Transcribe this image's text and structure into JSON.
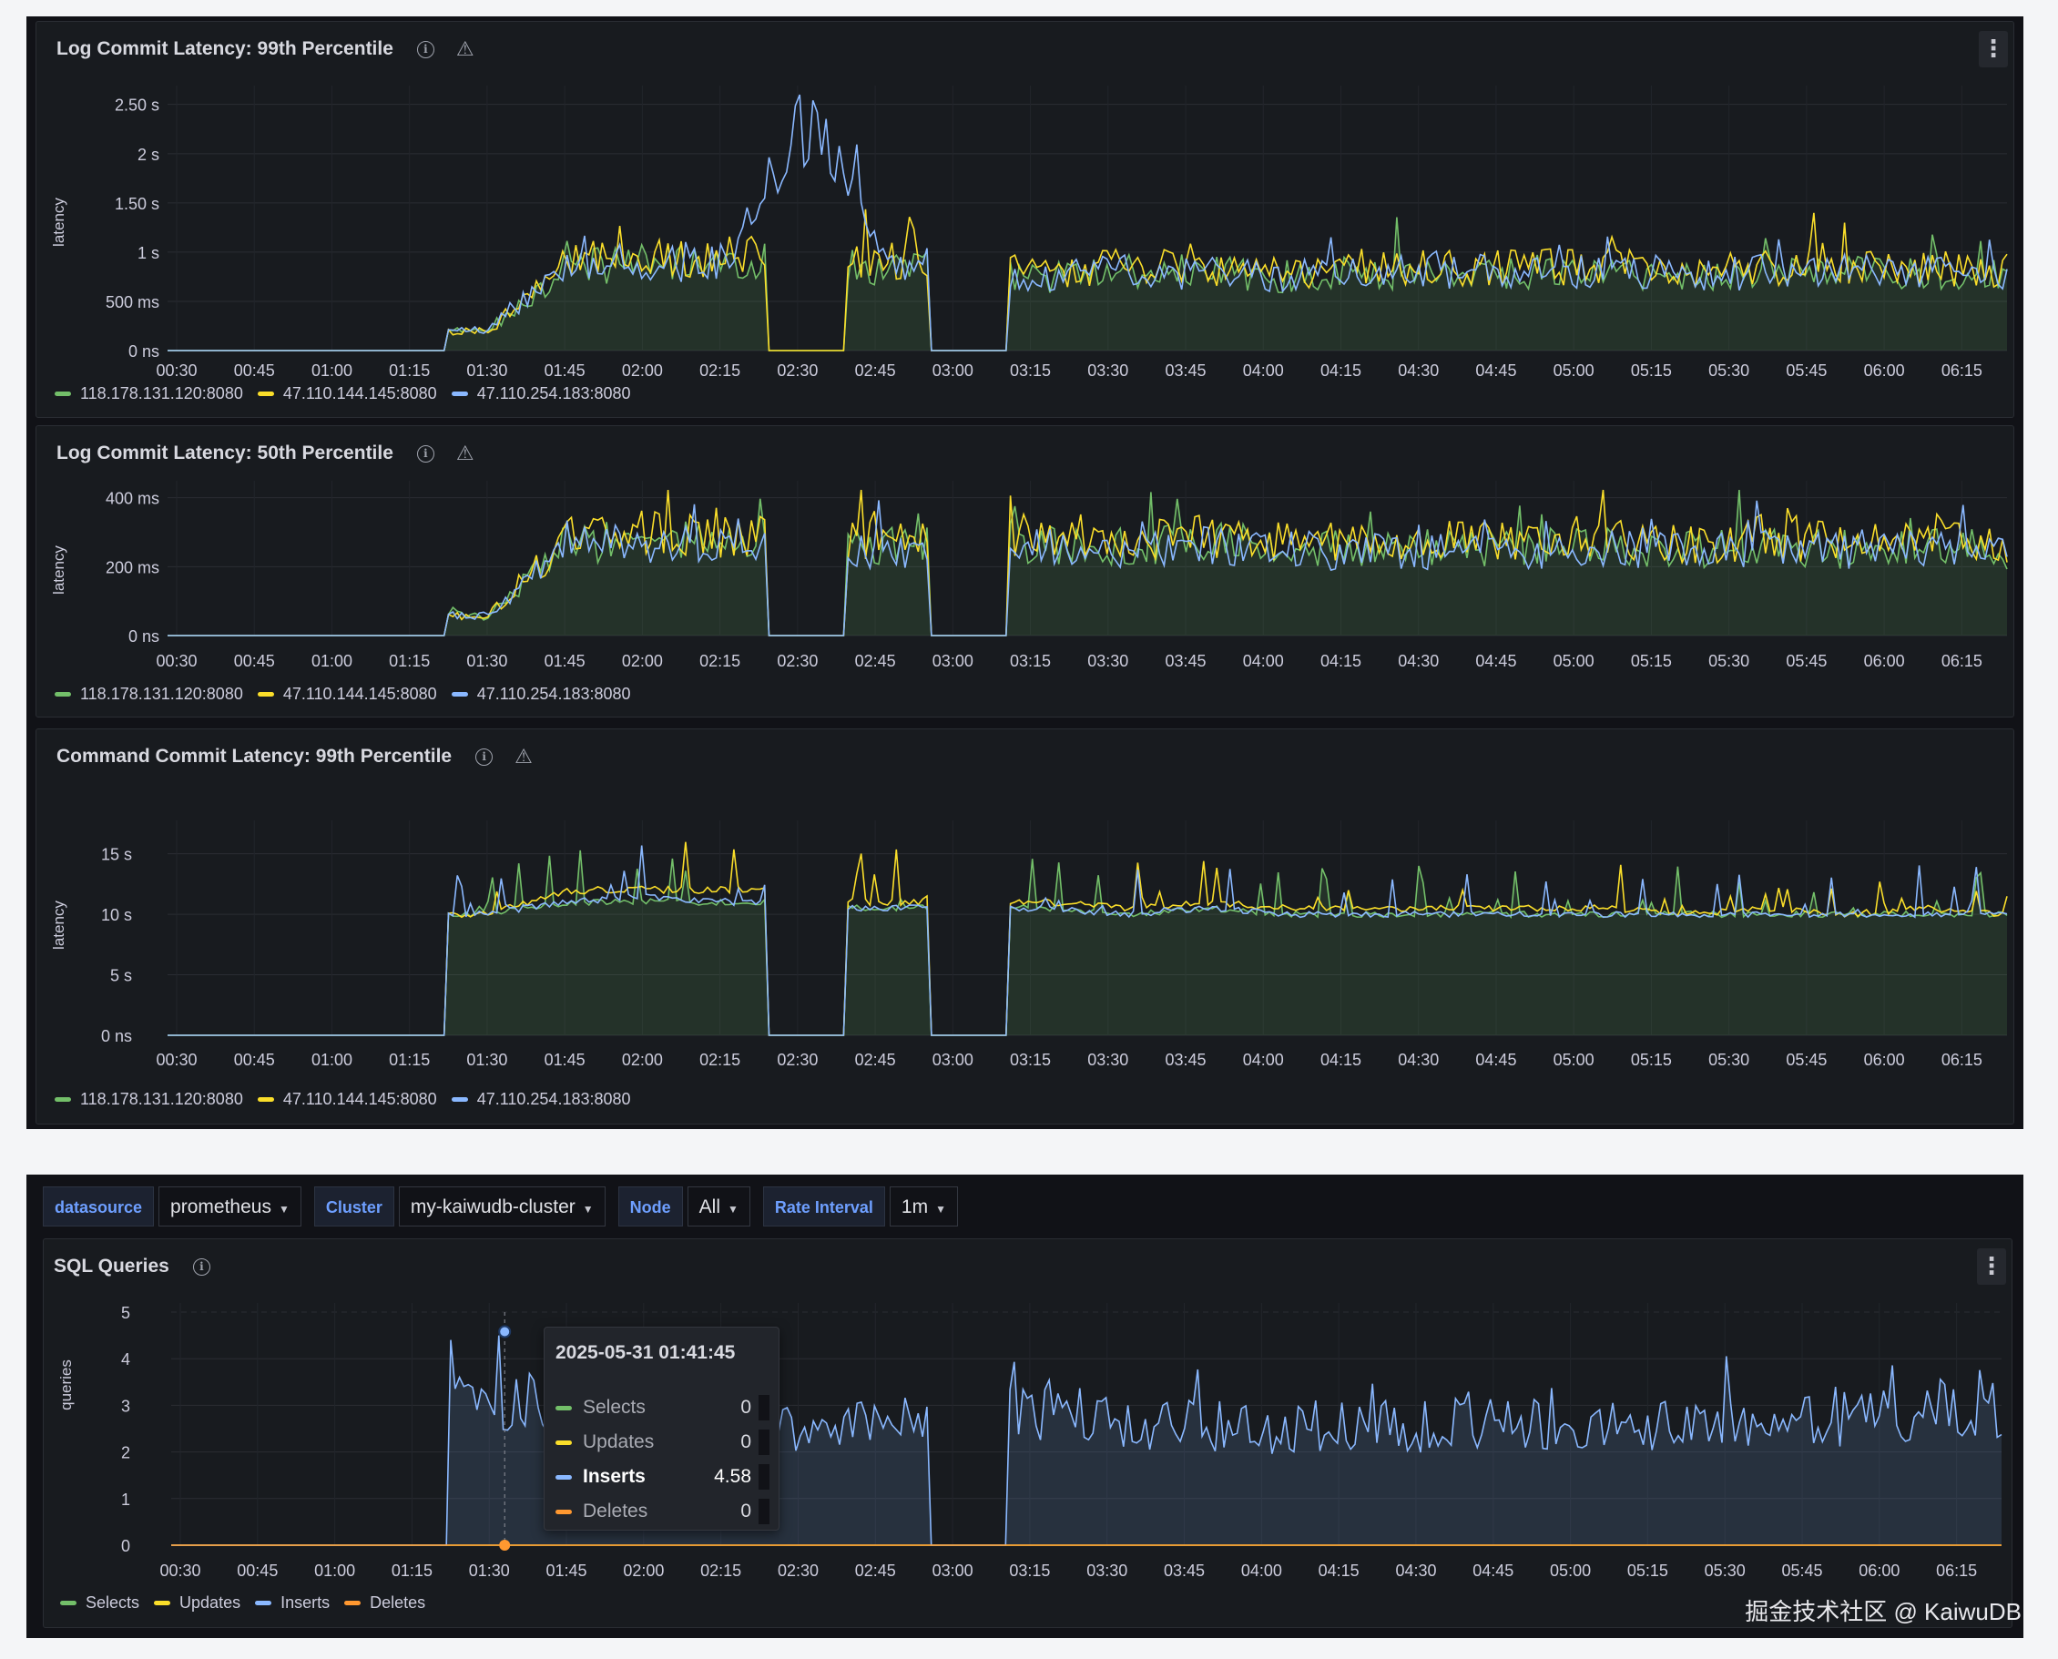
{
  "colors": {
    "green": "#73bf69",
    "yellow": "#fade2a",
    "blue": "#8ab8ff",
    "orange": "#ff9830"
  },
  "panels": [
    {
      "title": "Log Commit Latency: 99th Percentile",
      "ylabel": "latency",
      "y_ticks": [
        "0 ns",
        "500 ms",
        "1 s",
        "1.50 s",
        "2 s",
        "2.50 s"
      ],
      "legend": [
        "118.178.131.120:8080",
        "47.110.144.145:8080",
        "47.110.254.183:8080"
      ]
    },
    {
      "title": "Log Commit Latency: 50th Percentile",
      "ylabel": "latency",
      "y_ticks": [
        "0 ns",
        "200 ms",
        "400 ms"
      ],
      "legend": [
        "118.178.131.120:8080",
        "47.110.144.145:8080",
        "47.110.254.183:8080"
      ]
    },
    {
      "title": "Command Commit Latency: 99th Percentile",
      "ylabel": "latency",
      "y_ticks": [
        "0 ns",
        "5 s",
        "10 s",
        "15 s"
      ],
      "legend": [
        "118.178.131.120:8080",
        "47.110.144.145:8080",
        "47.110.254.183:8080"
      ]
    }
  ],
  "x_ticks": [
    "00:30",
    "00:45",
    "01:00",
    "01:15",
    "01:30",
    "01:45",
    "02:00",
    "02:15",
    "02:30",
    "02:45",
    "03:00",
    "03:15",
    "03:30",
    "03:45",
    "04:00",
    "04:15",
    "04:30",
    "04:45",
    "05:00",
    "05:15",
    "05:30",
    "05:45",
    "06:00",
    "06:15"
  ],
  "variables": [
    {
      "label": "datasource",
      "value": "prometheus"
    },
    {
      "label": "Cluster",
      "value": "my-kaiwudb-cluster"
    },
    {
      "label": "Node",
      "value": "All"
    },
    {
      "label": "Rate Interval",
      "value": "1m"
    }
  ],
  "sql_panel": {
    "title": "SQL Queries",
    "ylabel": "queries",
    "y_ticks": [
      "0",
      "1",
      "2",
      "3",
      "4",
      "5"
    ],
    "legend": [
      "Selects",
      "Updates",
      "Inserts",
      "Deletes"
    ],
    "tooltip": {
      "time": "2025-05-31 01:41:45",
      "rows": [
        {
          "name": "Selects",
          "value": "0"
        },
        {
          "name": "Updates",
          "value": "0"
        },
        {
          "name": "Inserts",
          "value": "4.58"
        },
        {
          "name": "Deletes",
          "value": "0"
        }
      ]
    }
  },
  "chart_data": [
    {
      "type": "area",
      "title": "Log Commit Latency: 99th Percentile",
      "ylabel": "latency",
      "ylim_seconds": [
        0,
        2.6
      ],
      "x": [
        "00:30",
        "00:45",
        "01:00",
        "01:15",
        "01:30",
        "01:45",
        "02:00",
        "02:15",
        "02:30",
        "02:45",
        "03:00",
        "03:15",
        "03:30",
        "03:45",
        "04:00",
        "04:15",
        "04:30",
        "04:45",
        "05:00",
        "05:15",
        "05:30",
        "05:45",
        "06:00",
        "06:15"
      ],
      "series": [
        {
          "name": "118.178.131.120:8080",
          "values_seconds": [
            0,
            0,
            0,
            0,
            0.2,
            0.85,
            0.9,
            0.9,
            0,
            0.85,
            0,
            0.75,
            0.8,
            0.8,
            0.75,
            0.8,
            0.8,
            0.8,
            0.8,
            0.75,
            0.8,
            0.8,
            0.8,
            0.75
          ]
        },
        {
          "name": "47.110.144.145:8080",
          "values_seconds": [
            0,
            0,
            0,
            0,
            0.2,
            0.9,
            0.95,
            0.95,
            0,
            0.9,
            0,
            0.8,
            0.85,
            0.85,
            0.8,
            0.85,
            0.85,
            0.85,
            0.85,
            0.8,
            0.85,
            0.85,
            0.85,
            0.8
          ]
        },
        {
          "name": "47.110.254.183:8080",
          "values_seconds": [
            0,
            0,
            0,
            0,
            0.2,
            0.85,
            0.9,
            0.9,
            2.3,
            0.85,
            0,
            0.75,
            0.8,
            0.8,
            0.75,
            0.8,
            0.8,
            0.8,
            0.8,
            0.75,
            0.8,
            0.8,
            0.8,
            0.75
          ]
        }
      ]
    },
    {
      "type": "area",
      "title": "Log Commit Latency: 50th Percentile",
      "ylabel": "latency",
      "ylim_ms": [
        0,
        440
      ],
      "x": [
        "00:30",
        "00:45",
        "01:00",
        "01:15",
        "01:30",
        "01:45",
        "02:00",
        "02:15",
        "02:30",
        "02:45",
        "03:00",
        "03:15",
        "03:30",
        "03:45",
        "04:00",
        "04:15",
        "04:30",
        "04:45",
        "05:00",
        "05:15",
        "05:30",
        "05:45",
        "06:00",
        "06:15"
      ],
      "series": [
        {
          "name": "118.178.131.120:8080",
          "values_ms": [
            0,
            0,
            0,
            0,
            60,
            280,
            290,
            280,
            0,
            270,
            0,
            280,
            270,
            280,
            270,
            260,
            270,
            260,
            270,
            260,
            270,
            260,
            270,
            250
          ]
        },
        {
          "name": "47.110.144.145:8080",
          "values_ms": [
            0,
            0,
            0,
            0,
            60,
            300,
            310,
            300,
            0,
            290,
            0,
            300,
            290,
            300,
            290,
            280,
            290,
            280,
            290,
            280,
            290,
            280,
            290,
            270
          ]
        },
        {
          "name": "47.110.254.183:8080",
          "values_ms": [
            0,
            0,
            0,
            0,
            60,
            270,
            280,
            270,
            0,
            260,
            0,
            270,
            260,
            270,
            260,
            250,
            260,
            250,
            260,
            250,
            260,
            250,
            260,
            240
          ]
        }
      ]
    },
    {
      "type": "area",
      "title": "Command Commit Latency: 99th Percentile",
      "ylabel": "latency",
      "ylim_seconds": [
        0,
        17
      ],
      "x": [
        "00:30",
        "00:45",
        "01:00",
        "01:15",
        "01:30",
        "01:45",
        "02:00",
        "02:15",
        "02:30",
        "02:45",
        "03:00",
        "03:15",
        "03:30",
        "03:45",
        "04:00",
        "04:15",
        "04:30",
        "04:45",
        "05:00",
        "05:15",
        "05:30",
        "05:45",
        "06:00",
        "06:15"
      ],
      "series": [
        {
          "name": "118.178.131.120:8080",
          "values_seconds": [
            0,
            0,
            0,
            0,
            10,
            11,
            11,
            11,
            0,
            10.5,
            0,
            10.5,
            10,
            10.5,
            10,
            10,
            10,
            10,
            10,
            10,
            10,
            10,
            10,
            10
          ]
        },
        {
          "name": "47.110.144.145:8080",
          "values_seconds": [
            0,
            0,
            0,
            0,
            10,
            12,
            12,
            12,
            0,
            11,
            0,
            11,
            10.5,
            11,
            10.5,
            10.5,
            10.5,
            10.5,
            10.5,
            10,
            10.5,
            10,
            10.5,
            10
          ]
        },
        {
          "name": "47.110.254.183:8080",
          "values_seconds": [
            0,
            0,
            0,
            0,
            10,
            11,
            11.5,
            11,
            0,
            10.5,
            0,
            10.5,
            10,
            10.5,
            10,
            10,
            10,
            10,
            10,
            10,
            10,
            10,
            10,
            10
          ]
        }
      ]
    },
    {
      "type": "area",
      "title": "SQL Queries",
      "ylabel": "queries",
      "ylim": [
        0,
        5
      ],
      "x": [
        "00:30",
        "00:45",
        "01:00",
        "01:15",
        "01:30",
        "01:45",
        "02:00",
        "02:15",
        "02:30",
        "02:45",
        "03:00",
        "03:15",
        "03:30",
        "03:45",
        "04:00",
        "04:15",
        "04:30",
        "04:45",
        "05:00",
        "05:15",
        "05:30",
        "05:45",
        "06:00",
        "06:15"
      ],
      "series": [
        {
          "name": "Selects",
          "values": [
            0,
            0,
            0,
            0,
            0,
            0,
            0,
            0,
            0,
            0,
            0,
            0,
            0,
            0,
            0,
            0,
            0,
            0,
            0,
            0,
            0,
            0,
            0,
            0
          ]
        },
        {
          "name": "Updates",
          "values": [
            0,
            0,
            0,
            0,
            0,
            0,
            0,
            0,
            0,
            0,
            0,
            0,
            0,
            0,
            0,
            0,
            0,
            0,
            0,
            0,
            0,
            0,
            0,
            0
          ]
        },
        {
          "name": "Inserts",
          "values": [
            0,
            0,
            0,
            0,
            3.2,
            3.0,
            2.9,
            2.9,
            2.4,
            2.6,
            0,
            2.9,
            2.6,
            2.6,
            2.5,
            2.6,
            2.5,
            2.6,
            2.5,
            2.6,
            2.6,
            2.7,
            2.9,
            2.9
          ]
        },
        {
          "name": "Deletes",
          "values": [
            0,
            0,
            0,
            0,
            0,
            0,
            0,
            0,
            0,
            0,
            0,
            0,
            0,
            0,
            0,
            0,
            0,
            0,
            0,
            0,
            0,
            0,
            0,
            0
          ]
        }
      ]
    }
  ],
  "watermark": "掘金技术社区 @ KaiwuDB"
}
